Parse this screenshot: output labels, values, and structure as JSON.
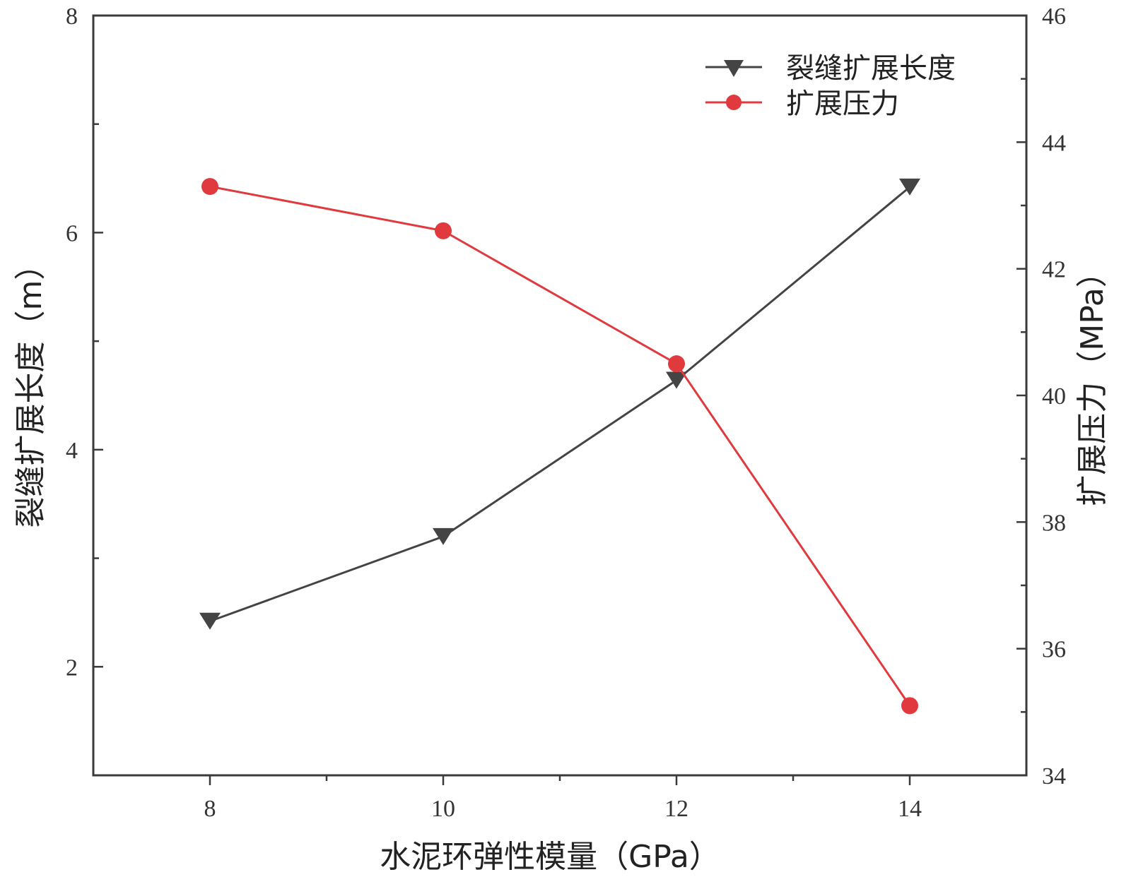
{
  "chart_data": {
    "type": "line",
    "x": [
      8,
      10,
      12,
      14
    ],
    "xlabel": "水泥环弹性模量（GPa）",
    "ylabel_left": "裂缝扩展长度（m）",
    "ylabel_right": "扩展压力（MPa）",
    "xlim": [
      7,
      15
    ],
    "ylim_left": [
      1,
      8
    ],
    "ylim_right": [
      34,
      46
    ],
    "xticks": [
      8,
      10,
      12,
      14
    ],
    "yticks_left": [
      2,
      4,
      6,
      8
    ],
    "yticks_right": [
      34,
      36,
      38,
      40,
      42,
      44,
      46
    ],
    "grid": false,
    "legend_position": "top-right",
    "series": [
      {
        "name": "裂缝扩展长度",
        "axis": "left",
        "marker": "triangle-down",
        "color": "#444444",
        "values": [
          2.42,
          3.2,
          4.64,
          6.42
        ]
      },
      {
        "name": "扩展压力",
        "axis": "right",
        "marker": "circle",
        "color": "#e03a3e",
        "values": [
          43.3,
          42.6,
          40.5,
          35.1
        ]
      }
    ]
  }
}
